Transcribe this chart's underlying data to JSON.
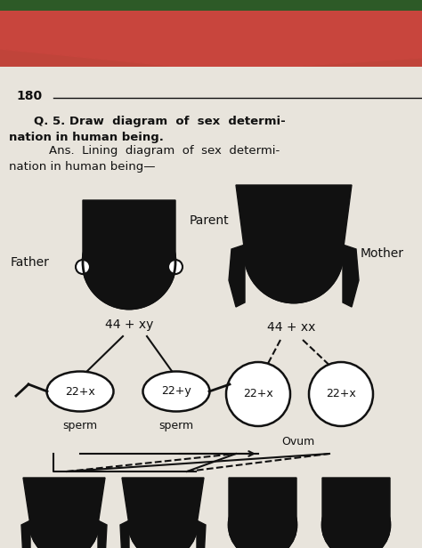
{
  "bg_top_color": "#d4726a",
  "bg_paper_color": "#e8e4dc",
  "page_number": "180",
  "question_line1": "Q. 5. Draw  diagram  of  sex  determi-",
  "question_line2": "nation in human being.",
  "answer_line1": "    Ans.  Lining  diagram  of  sex  determi-",
  "answer_line2": "nation in human being—",
  "father_label": "Father",
  "mother_label": "Mother",
  "parent_label": "Parent",
  "father_chromo": "44 + xy",
  "mother_chromo": "44 + xx",
  "sperm1_label": "22+x",
  "sperm2_label": "22+y",
  "ovum1_label": "22+x",
  "ovum2_label": "22+x",
  "sperm_text1": "sperm",
  "sperm_text2": "sperm",
  "ovum_text": "Ovum",
  "text_color": "#111111",
  "line_color": "#111111",
  "paper_white": "#f0ede6"
}
